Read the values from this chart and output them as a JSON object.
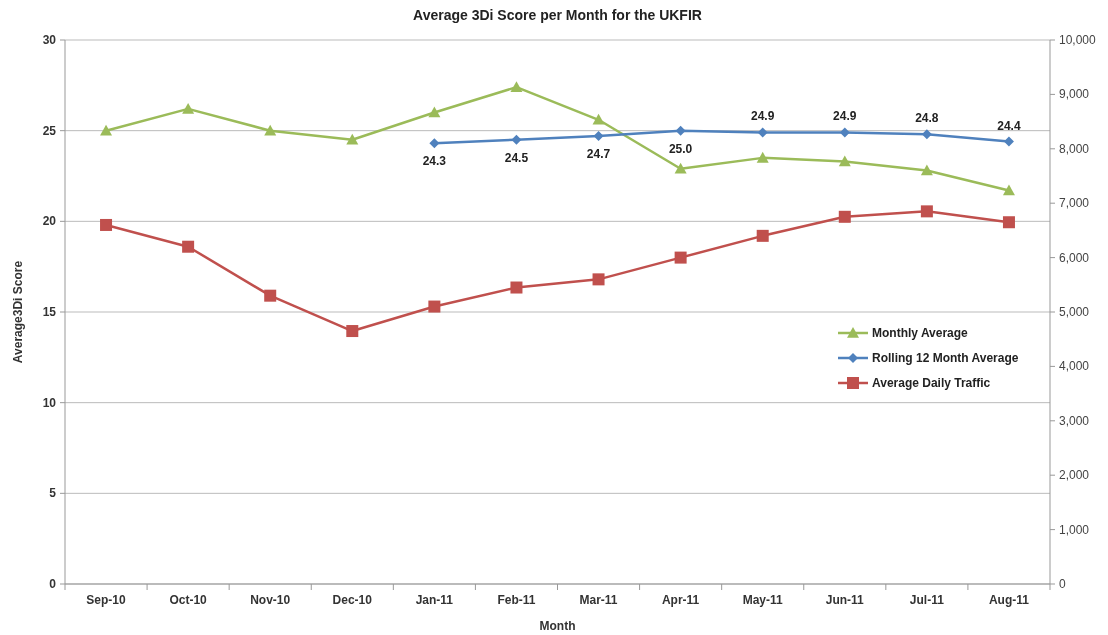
{
  "chart_data": {
    "type": "line",
    "title": "Average 3Di Score per Month for the UKFIR",
    "xlabel": "Month",
    "ylabel": "Average3Di Score",
    "categories": [
      "Sep-10",
      "Oct-10",
      "Nov-10",
      "Dec-10",
      "Jan-11",
      "Feb-11",
      "Mar-11",
      "Apr-11",
      "May-11",
      "Jun-11",
      "Jul-11",
      "Aug-11"
    ],
    "series": [
      {
        "name": "Monthly Average",
        "color": "#9bbb59",
        "marker": "triangle",
        "values": [
          25.0,
          26.2,
          25.0,
          24.5,
          26.0,
          27.4,
          25.6,
          22.9,
          23.5,
          23.3,
          22.8,
          21.7
        ]
      },
      {
        "name": "Rolling 12 Month Average",
        "color": "#4f81bd",
        "marker": "diamond",
        "values": [
          null,
          null,
          null,
          null,
          24.3,
          24.5,
          24.7,
          25.0,
          24.9,
          24.9,
          24.8,
          24.4
        ],
        "value_labels": [
          null,
          null,
          null,
          null,
          "24.3",
          "24.5",
          "24.7",
          "25.0",
          "24.9",
          "24.9",
          "24.8",
          "24.4"
        ]
      },
      {
        "name": "Average Daily Traffic",
        "color": "#c0504d",
        "marker": "square",
        "axis": "y2",
        "values": [
          6600,
          6200,
          5300,
          4650,
          5100,
          5450,
          5600,
          6000,
          6400,
          6750,
          6850,
          6650
        ]
      }
    ],
    "ylim": [
      0,
      30
    ],
    "yticks": [
      0,
      5,
      10,
      15,
      20,
      25,
      30
    ],
    "y2lim": [
      0,
      10000
    ],
    "y2ticks": [
      {
        "value": 0,
        "label": "0"
      },
      {
        "value": 1000,
        "label": "1,000"
      },
      {
        "value": 2000,
        "label": "2,000"
      },
      {
        "value": 3000,
        "label": "3,000"
      },
      {
        "value": 4000,
        "label": "4,000"
      },
      {
        "value": 5000,
        "label": "5,000"
      },
      {
        "value": 6000,
        "label": "6,000"
      },
      {
        "value": 7000,
        "label": "7,000"
      },
      {
        "value": 8000,
        "label": "8,000"
      },
      {
        "value": 9000,
        "label": "9,000"
      },
      {
        "value": 10000,
        "label": "10,000"
      }
    ],
    "grid": "y",
    "legend": "right"
  }
}
